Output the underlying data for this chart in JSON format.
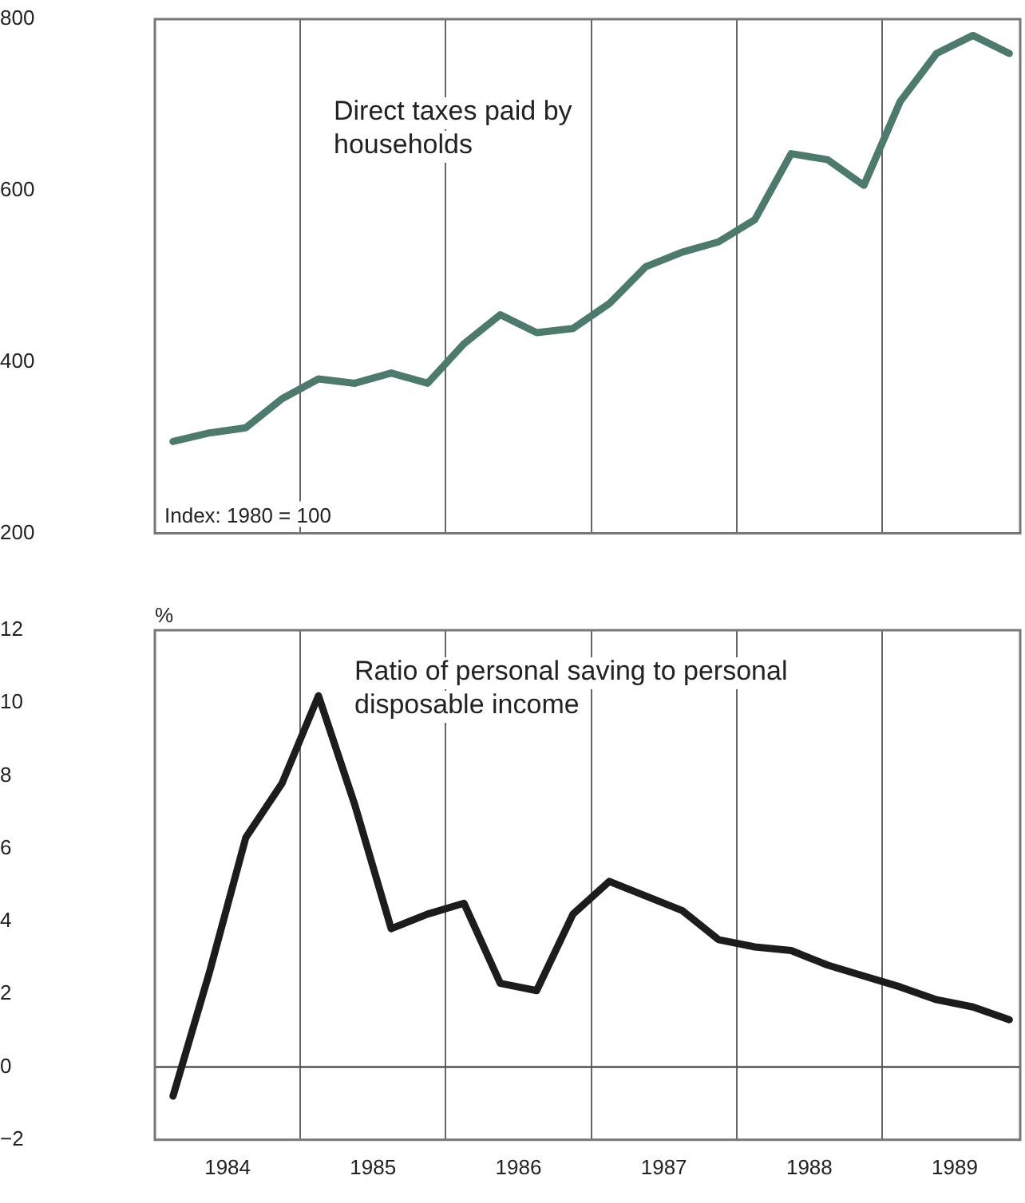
{
  "chart_data": [
    {
      "type": "line",
      "title": "Direct taxes paid by households",
      "annotations": [
        "Index: 1980 = 100"
      ],
      "x": [
        1984.125,
        1984.375,
        1984.625,
        1984.875,
        1985.125,
        1985.375,
        1985.625,
        1985.875,
        1986.125,
        1986.375,
        1986.625,
        1986.875,
        1987.125,
        1987.375,
        1987.625,
        1987.875,
        1988.125,
        1988.375,
        1988.625,
        1988.875,
        1989.125,
        1989.375,
        1989.625,
        1989.875
      ],
      "series": [
        {
          "color": "#4d7a6c",
          "values": [
            307,
            317,
            323,
            357,
            380,
            375,
            387,
            375,
            421,
            455,
            434,
            439,
            468,
            511,
            528,
            540,
            566,
            643,
            636,
            606,
            704,
            760,
            781,
            760
          ]
        }
      ],
      "xlim": [
        1984,
        1989.95
      ],
      "xticks": [
        {
          "value": 1985,
          "label": null
        },
        {
          "value": 1986,
          "label": null
        },
        {
          "value": 1987,
          "label": null
        },
        {
          "value": 1988,
          "label": null
        },
        {
          "value": 1989,
          "label": null
        }
      ],
      "ylim": [
        200,
        800
      ],
      "yticks": [
        200,
        400,
        600,
        800
      ],
      "grid": "x",
      "tick_labels": "y",
      "legend": false,
      "line_style": "solid",
      "marker": "none"
    },
    {
      "type": "line",
      "title": "Ratio of personal saving to personal disposable income",
      "ylabel": "%",
      "x": [
        1984.125,
        1984.375,
        1984.625,
        1984.875,
        1985.125,
        1985.375,
        1985.625,
        1985.875,
        1986.125,
        1986.375,
        1986.625,
        1986.875,
        1987.125,
        1987.375,
        1987.625,
        1987.875,
        1988.125,
        1988.375,
        1988.625,
        1988.875,
        1989.125,
        1989.375,
        1989.625,
        1989.875
      ],
      "series": [
        {
          "color": "#1c1c1c",
          "values": [
            -0.8,
            2.6,
            6.3,
            7.8,
            10.2,
            7.2,
            3.8,
            4.2,
            4.5,
            2.3,
            2.1,
            4.2,
            5.1,
            4.7,
            4.3,
            3.5,
            3.3,
            3.2,
            2.8,
            2.5,
            2.2,
            1.85,
            1.65,
            1.3
          ]
        }
      ],
      "xlim": [
        1984,
        1989.95
      ],
      "xticks": [
        {
          "value": 1984.5,
          "label": "1984"
        },
        {
          "value": 1985,
          "label": null
        },
        {
          "value": 1985.5,
          "label": "1985"
        },
        {
          "value": 1986,
          "label": null
        },
        {
          "value": 1986.5,
          "label": "1986"
        },
        {
          "value": 1987,
          "label": null
        },
        {
          "value": 1987.5,
          "label": "1987"
        },
        {
          "value": 1988,
          "label": null
        },
        {
          "value": 1988.5,
          "label": "1988"
        },
        {
          "value": 1989,
          "label": null
        },
        {
          "value": 1989.5,
          "label": "1989"
        }
      ],
      "ylim": [
        -2,
        12
      ],
      "yticks": [
        -2,
        0,
        2,
        4,
        6,
        8,
        10,
        12
      ],
      "grid": "x",
      "legend": false,
      "line_style": "solid",
      "marker": "none",
      "ref_lines": [
        {
          "axis": "y",
          "value": 0,
          "color": "#555555"
        }
      ]
    }
  ]
}
